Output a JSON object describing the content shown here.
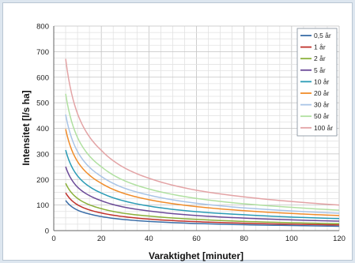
{
  "chart_data": {
    "type": "line",
    "xlabel": "Varaktighet [minuter]",
    "ylabel": "Intensitet [l/s ha]",
    "xlim": [
      0,
      120
    ],
    "ylim": [
      0,
      800
    ],
    "x_ticks": [
      0,
      20,
      40,
      60,
      80,
      100,
      120
    ],
    "y_ticks": [
      0,
      100,
      200,
      300,
      400,
      500,
      600,
      700,
      800
    ],
    "grid": true,
    "legend_position": "top-right",
    "x": [
      5,
      10,
      15,
      20,
      30,
      40,
      60,
      80,
      100,
      120
    ],
    "series": [
      {
        "name": "0,5 år",
        "color": "#3b6ea8",
        "values": [
          118,
          80,
          65,
          55,
          43,
          36,
          28,
          23,
          20,
          17
        ]
      },
      {
        "name": "1 år",
        "color": "#c0312b",
        "values": [
          148,
          101,
          81,
          69,
          54,
          45,
          35,
          29,
          25,
          22
        ]
      },
      {
        "name": "2 år",
        "color": "#8ab03a",
        "values": [
          185,
          126,
          101,
          86,
          67,
          57,
          44,
          36,
          31,
          27
        ]
      },
      {
        "name": "5 år",
        "color": "#6b4a98",
        "values": [
          250,
          170,
          137,
          117,
          91,
          77,
          59,
          49,
          42,
          37
        ]
      },
      {
        "name": "10 år",
        "color": "#2a9bb5",
        "values": [
          315,
          214,
          172,
          147,
          115,
          96,
          74,
          62,
          53,
          47
        ]
      },
      {
        "name": "20 år",
        "color": "#f08c2a",
        "values": [
          397,
          270,
          217,
          185,
          144,
          121,
          94,
          78,
          67,
          59
        ]
      },
      {
        "name": "30 år",
        "color": "#a9c4e6",
        "values": [
          454,
          309,
          248,
          212,
          165,
          139,
          107,
          89,
          77,
          68
        ]
      },
      {
        "name": "50 år",
        "color": "#b0e0a0",
        "values": [
          535,
          364,
          292,
          250,
          194,
          163,
          126,
          105,
          91,
          80
        ]
      },
      {
        "name": "100 år",
        "color": "#e3a3a5",
        "values": [
          672,
          457,
          367,
          314,
          244,
          205,
          158,
          132,
          114,
          100
        ]
      }
    ]
  }
}
